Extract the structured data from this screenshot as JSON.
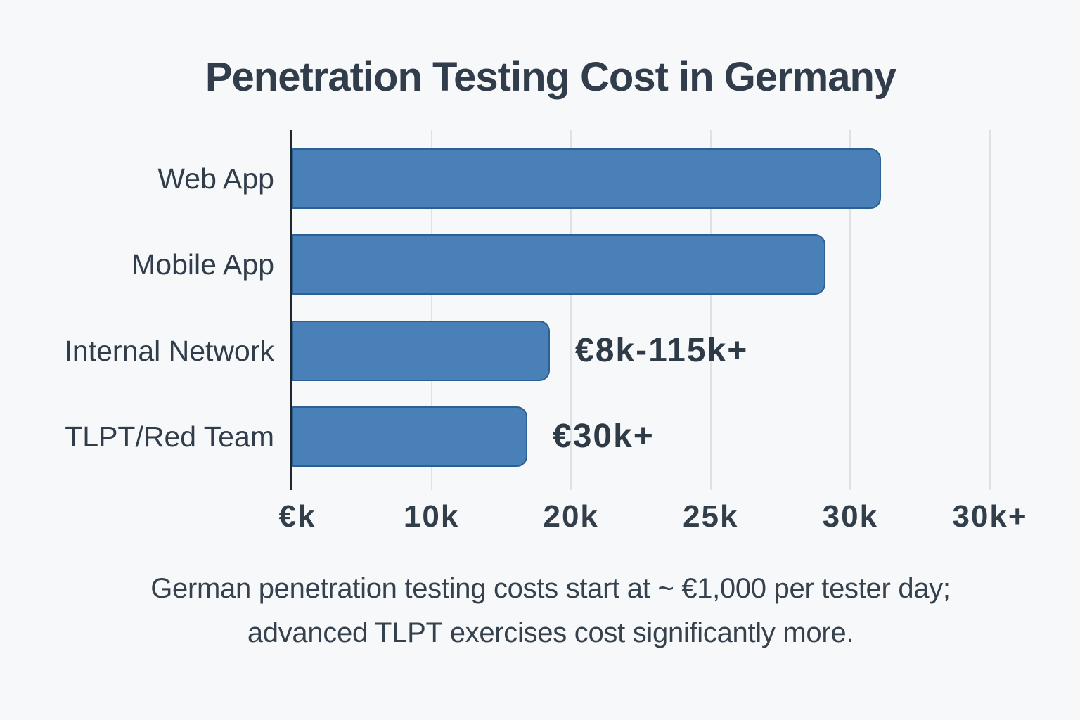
{
  "title": "Penetration Testing Cost in Germany",
  "chart_data": {
    "type": "bar",
    "orientation": "horizontal",
    "title": "Penetration Testing Cost in Germany",
    "categories": [
      "Web App",
      "Mobile App",
      "Internal Network",
      "TLPT/Red Team"
    ],
    "x_tick_labels": [
      "€k",
      "10k",
      "20k",
      "25k",
      "30k",
      "30k+"
    ],
    "bars": [
      {
        "label": "Web App",
        "width_pct": 84.4,
        "approx_value_k": 31,
        "annotation": ""
      },
      {
        "label": "Mobile App",
        "width_pct": 76.4,
        "approx_value_k": 29,
        "annotation": ""
      },
      {
        "label": "Internal Network",
        "width_pct": 37.0,
        "approx_value_k": 18,
        "annotation": "€8k-115k+"
      },
      {
        "label": "TLPT/Red Team",
        "width_pct": 33.7,
        "approx_value_k": 17,
        "annotation": "€30k+"
      }
    ],
    "xlabel": "",
    "ylabel": "",
    "grid": true,
    "legend": false,
    "bar_color": "#4A80B8",
    "bar_border_color": "#2B6094",
    "gridline_color": "#DFE1E5",
    "axis_color": "#20262E",
    "background_color": "#F7F8F9",
    "text_color": "#323D4B",
    "caption": "German penetration testing costs start at ~ €1,000 per tester day; advanced TLPT exercises cost significantly more."
  },
  "caption": {
    "line1": "German penetration testing costs start at ~ €1,000 per tester day;",
    "line2": "advanced TLPT exercises cost significantly more."
  }
}
